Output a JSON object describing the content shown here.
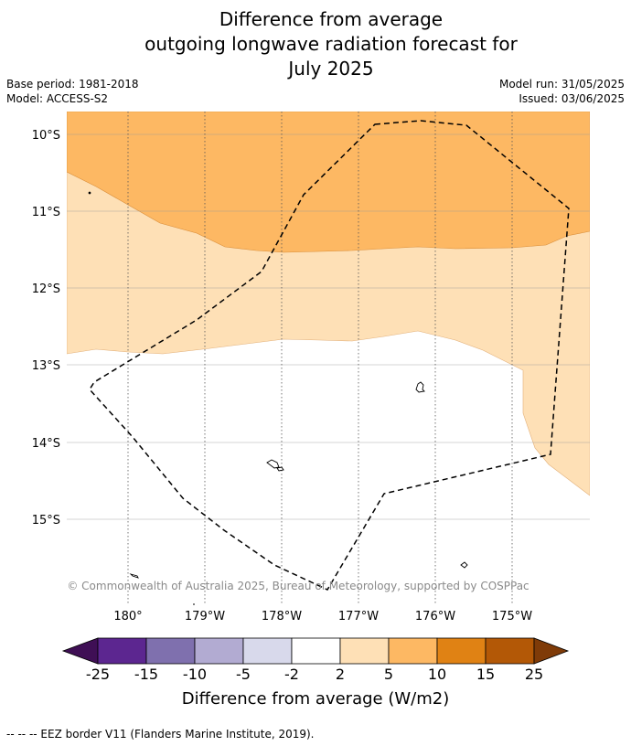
{
  "title": {
    "line1": "Difference from average",
    "line2": "outgoing longwave radiation forecast for",
    "line3": "July 2025"
  },
  "meta": {
    "base_period": "Base period: 1981-2018",
    "model": "Model: ACCESS-S2",
    "model_run": "Model run: 31/05/2025",
    "issued": "Issued: 03/06/2025"
  },
  "map": {
    "lat_labels": [
      "10°S",
      "11°S",
      "12°S",
      "13°S",
      "14°S",
      "15°S"
    ],
    "lon_labels": [
      "180°",
      "179°W",
      "178°W",
      "177°W",
      "176°W",
      "175°W"
    ],
    "lat_range": [
      -9.7,
      -15.9
    ],
    "lon_range": [
      -179.2,
      -172.4
    ],
    "copyright": "© Commonwealth of Australia 2025, Bureau of Meteorology, supported by COSPPac"
  },
  "legend": {
    "ticks": [
      "-25",
      "-15",
      "-10",
      "-5",
      "-2",
      "2",
      "5",
      "10",
      "15",
      "25"
    ],
    "colors": [
      "#3f0f55",
      "#5c2690",
      "#7f70ae",
      "#b2abd2",
      "#d8d9eb",
      "#ffffff",
      "#fee0b6",
      "#fdb863",
      "#e08214",
      "#b35806",
      "#7f3b08"
    ],
    "label": "Difference from average (W/m2)"
  },
  "footer": "--  --  -- EEZ border V11 (Flanders Marine Institute, 2019)."
}
